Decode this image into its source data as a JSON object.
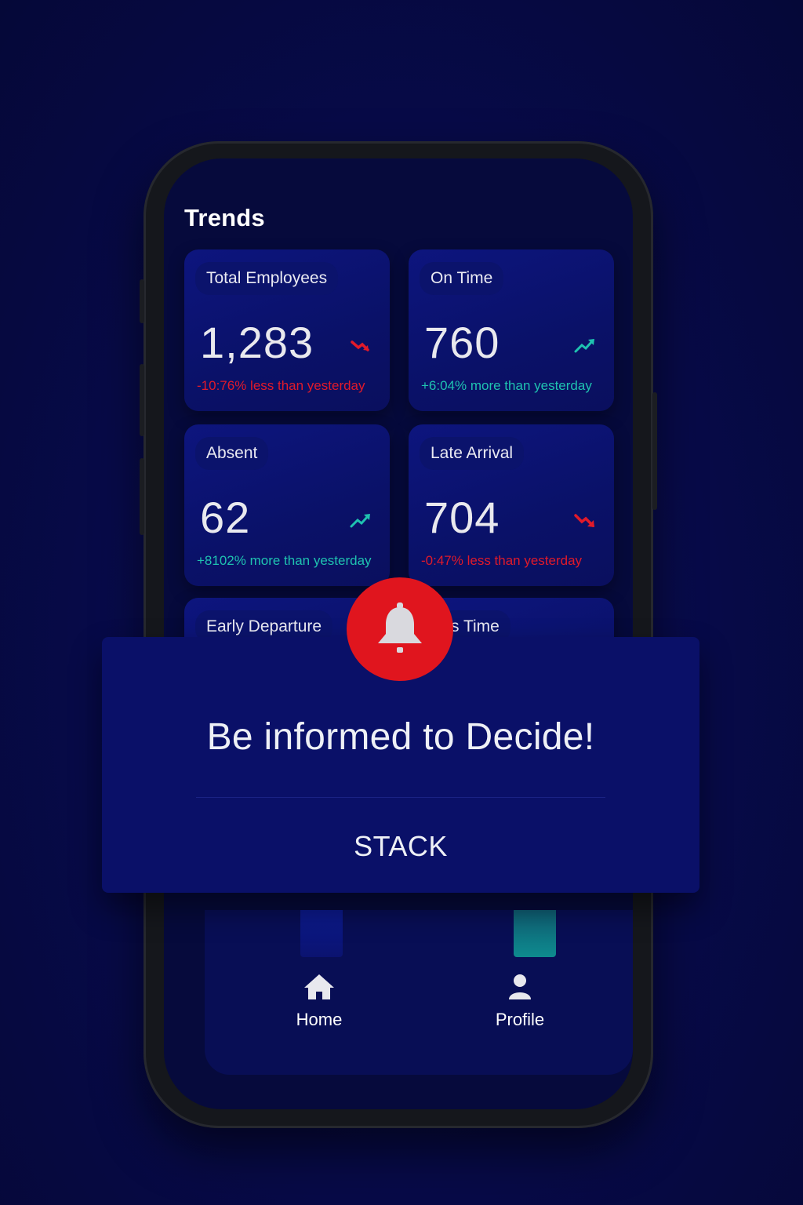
{
  "screen_title": "Trends",
  "cards": [
    {
      "label": "Total Employees",
      "value": "1,283",
      "change": "-10:76% less than yesterday",
      "trend": "down"
    },
    {
      "label": "On Time",
      "value": "760",
      "change": "+6:04% more than yesterday",
      "trend": "up"
    },
    {
      "label": "Absent",
      "value": "62",
      "change": "+8102% more than yesterday",
      "trend": "up"
    },
    {
      "label": "Late Arrival",
      "value": "704",
      "change": "-0:47% less than yesterday",
      "trend": "down"
    },
    {
      "label": "Early Departure"
    },
    {
      "label": "s Time"
    }
  ],
  "banner": {
    "headline": "Be informed to Decide!",
    "brand": "STACK",
    "icon": "bell-icon"
  },
  "nav": [
    {
      "label": "Home",
      "icon": "home-icon"
    },
    {
      "label": "Profile",
      "icon": "user-icon"
    }
  ],
  "colors": {
    "background": "#070a48",
    "card": "#0a1168",
    "accent": "#e0151e",
    "up": "#1fc2b0",
    "down": "#e11a2a"
  }
}
